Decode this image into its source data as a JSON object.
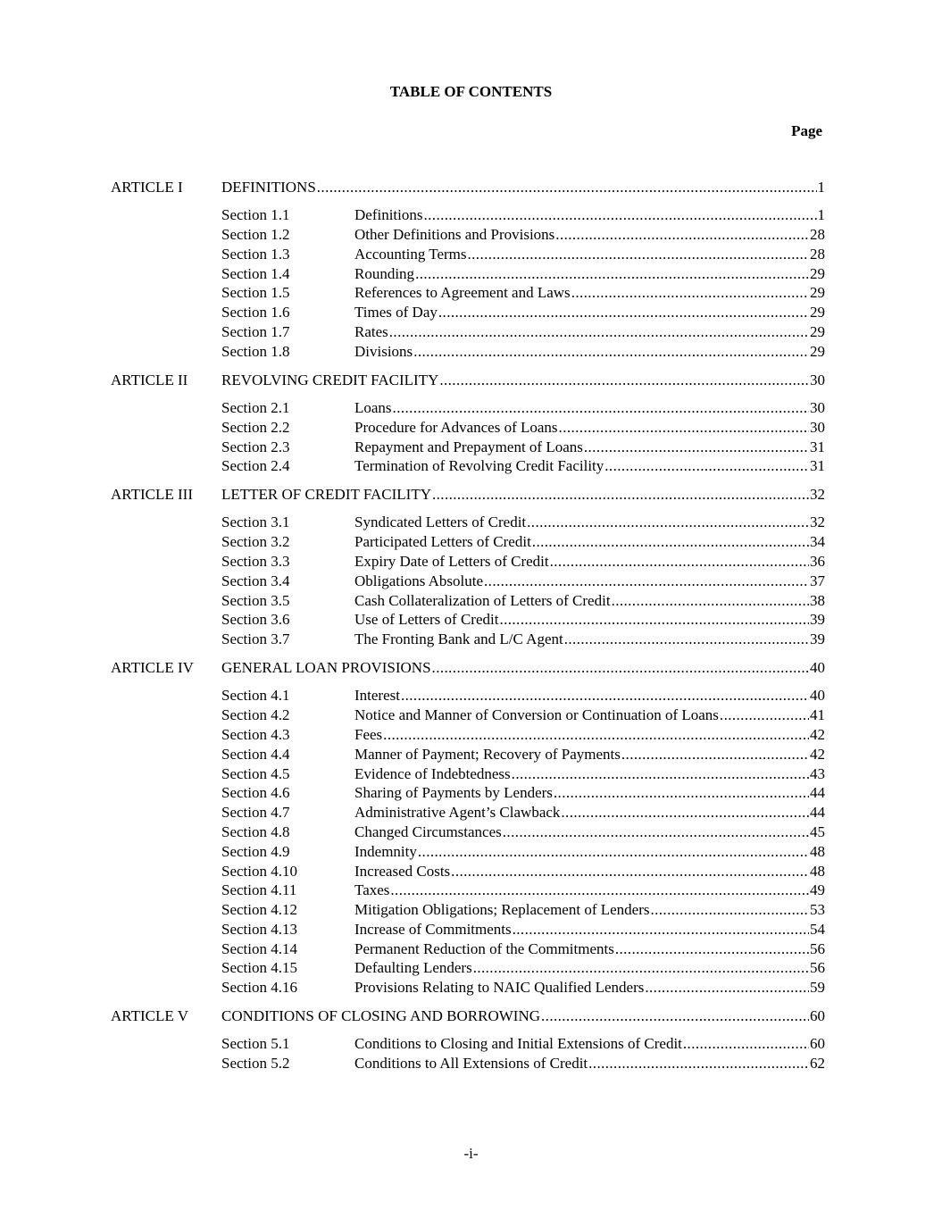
{
  "title": "TABLE OF CONTENTS",
  "page_header": "Page",
  "articles": [
    {
      "label": "ARTICLE I",
      "title": "DEFINITIONS",
      "page": "1",
      "sections": [
        {
          "label": "Section 1.1",
          "title": "Definitions",
          "page": "1"
        },
        {
          "label": "Section 1.2",
          "title": "Other Definitions and Provisions",
          "page": "28"
        },
        {
          "label": "Section 1.3",
          "title": "Accounting Terms",
          "page": "28"
        },
        {
          "label": "Section 1.4",
          "title": "Rounding",
          "page": "29"
        },
        {
          "label": "Section 1.5",
          "title": "References to Agreement and Laws",
          "page": "29"
        },
        {
          "label": "Section 1.6",
          "title": "Times of Day",
          "page": "29"
        },
        {
          "label": "Section 1.7",
          "title": "Rates",
          "page": "29"
        },
        {
          "label": "Section 1.8",
          "title": "Divisions",
          "page": "29"
        }
      ]
    },
    {
      "label": "ARTICLE II",
      "title": "REVOLVING CREDIT FACILITY",
      "page": "30",
      "sections": [
        {
          "label": "Section 2.1",
          "title": "Loans",
          "page": "30"
        },
        {
          "label": "Section 2.2",
          "title": "Procedure for Advances of Loans",
          "page": "30"
        },
        {
          "label": "Section 2.3",
          "title": "Repayment and Prepayment of Loans",
          "page": "31"
        },
        {
          "label": "Section 2.4",
          "title": "Termination of Revolving Credit Facility",
          "page": "31"
        }
      ]
    },
    {
      "label": "ARTICLE III",
      "title": "LETTER OF CREDIT FACILITY",
      "page": "32",
      "sections": [
        {
          "label": "Section 3.1",
          "title": "Syndicated Letters of Credit",
          "page": "32"
        },
        {
          "label": "Section 3.2",
          "title": "Participated Letters of Credit",
          "page": "34"
        },
        {
          "label": "Section 3.3",
          "title": "Expiry Date of Letters of Credit",
          "page": "36"
        },
        {
          "label": "Section 3.4",
          "title": "Obligations Absolute",
          "page": "37"
        },
        {
          "label": "Section 3.5",
          "title": "Cash Collateralization of Letters of Credit",
          "page": "38"
        },
        {
          "label": "Section 3.6",
          "title": "Use of Letters of Credit",
          "page": "39"
        },
        {
          "label": "Section 3.7",
          "title": "The Fronting Bank and L/C Agent",
          "page": "39"
        }
      ]
    },
    {
      "label": "ARTICLE IV",
      "title": "GENERAL LOAN PROVISIONS",
      "page": "40",
      "sections": [
        {
          "label": "Section 4.1",
          "title": "Interest",
          "page": "40"
        },
        {
          "label": "Section 4.2",
          "title": "Notice and Manner of Conversion or Continuation of Loans",
          "page": "41"
        },
        {
          "label": "Section 4.3",
          "title": "Fees",
          "page": "42"
        },
        {
          "label": "Section 4.4",
          "title": "Manner of Payment; Recovery of Payments",
          "page": "42"
        },
        {
          "label": "Section 4.5",
          "title": "Evidence of Indebtedness",
          "page": "43"
        },
        {
          "label": "Section 4.6",
          "title": "Sharing of Payments by Lenders",
          "page": "44"
        },
        {
          "label": "Section 4.7",
          "title": "Administrative Agent’s Clawback",
          "page": "44"
        },
        {
          "label": "Section 4.8",
          "title": "Changed Circumstances",
          "page": "45"
        },
        {
          "label": "Section 4.9",
          "title": "Indemnity",
          "page": "48"
        },
        {
          "label": "Section 4.10",
          "title": "Increased Costs",
          "page": "48"
        },
        {
          "label": "Section 4.11",
          "title": "Taxes",
          "page": "49"
        },
        {
          "label": "Section 4.12",
          "title": "Mitigation Obligations; Replacement of Lenders",
          "page": "53"
        },
        {
          "label": "Section 4.13",
          "title": "Increase of Commitments",
          "page": "54"
        },
        {
          "label": "Section 4.14",
          "title": "Permanent Reduction of the Commitments",
          "page": "56"
        },
        {
          "label": "Section 4.15",
          "title": "Defaulting Lenders",
          "page": "56"
        },
        {
          "label": "Section 4.16",
          "title": "Provisions Relating to NAIC Qualified Lenders",
          "page": "59"
        }
      ]
    },
    {
      "label": "ARTICLE V",
      "title": "CONDITIONS OF CLOSING AND BORROWING",
      "page": "60",
      "sections": [
        {
          "label": "Section 5.1",
          "title": "Conditions to Closing and Initial Extensions of Credit",
          "page": "60"
        },
        {
          "label": "Section 5.2",
          "title": "Conditions to All Extensions of Credit",
          "page": "62"
        }
      ]
    }
  ],
  "footer": "-i-"
}
